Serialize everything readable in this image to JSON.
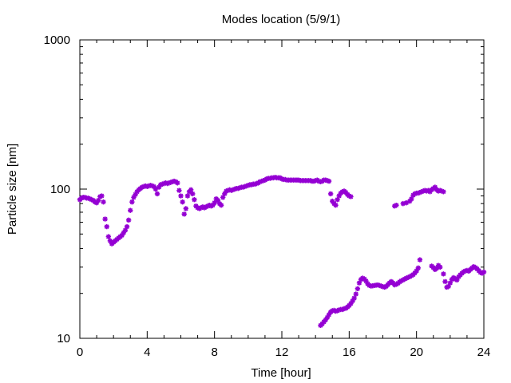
{
  "chart_data": {
    "type": "scatter",
    "title": "Modes location (5/9/1)",
    "xlabel": "Time [hour]",
    "ylabel": "Particle size [nm]",
    "xlim": [
      0,
      24
    ],
    "ylim": [
      10,
      1000
    ],
    "yscale": "log",
    "grid": false,
    "x_ticks": [
      0,
      4,
      8,
      12,
      16,
      20,
      24
    ],
    "x_tick_labels": [
      "0",
      "4",
      "8",
      "12",
      "16",
      "20",
      "24"
    ],
    "y_ticks": [
      10,
      100,
      1000
    ],
    "y_tick_labels": [
      "10",
      "100",
      "1000"
    ],
    "marker": "star",
    "color": "#9400d3",
    "series": [
      {
        "points": [
          [
            0.0,
            85
          ],
          [
            0.1,
            87
          ],
          [
            0.2,
            88
          ],
          [
            0.3,
            88
          ],
          [
            0.4,
            87
          ],
          [
            0.5,
            87
          ],
          [
            0.6,
            86
          ],
          [
            0.7,
            85
          ],
          [
            0.8,
            84
          ],
          [
            0.9,
            82
          ],
          [
            1.0,
            81
          ],
          [
            1.1,
            84
          ],
          [
            1.2,
            89
          ],
          [
            1.3,
            90
          ],
          [
            1.4,
            82
          ],
          [
            1.5,
            63
          ],
          [
            1.6,
            56
          ],
          [
            1.7,
            48
          ],
          [
            1.8,
            45
          ],
          [
            1.9,
            43
          ],
          [
            2.0,
            44
          ],
          [
            2.1,
            45
          ],
          [
            2.2,
            46
          ],
          [
            2.3,
            47
          ],
          [
            2.4,
            48
          ],
          [
            2.5,
            49
          ],
          [
            2.6,
            51
          ],
          [
            2.7,
            53
          ],
          [
            2.8,
            56
          ],
          [
            2.9,
            62
          ],
          [
            3.0,
            72
          ],
          [
            3.1,
            82
          ],
          [
            3.2,
            88
          ],
          [
            3.3,
            92
          ],
          [
            3.4,
            96
          ],
          [
            3.5,
            99
          ],
          [
            3.6,
            101
          ],
          [
            3.7,
            103
          ],
          [
            3.8,
            104
          ],
          [
            3.9,
            105
          ],
          [
            4.0,
            104
          ],
          [
            4.1,
            105
          ],
          [
            4.2,
            106
          ],
          [
            4.3,
            105
          ],
          [
            4.4,
            104
          ],
          [
            4.5,
            100
          ],
          [
            4.6,
            93
          ],
          [
            4.7,
            103
          ],
          [
            4.8,
            107
          ],
          [
            4.9,
            108
          ],
          [
            5.0,
            109
          ],
          [
            5.1,
            110
          ],
          [
            5.2,
            109
          ],
          [
            5.3,
            110
          ],
          [
            5.4,
            111
          ],
          [
            5.5,
            112
          ],
          [
            5.6,
            113
          ],
          [
            5.7,
            112
          ],
          [
            5.8,
            110
          ],
          [
            5.9,
            98
          ],
          [
            6.0,
            90
          ],
          [
            6.1,
            82
          ],
          [
            6.2,
            68
          ],
          [
            6.3,
            74
          ],
          [
            6.4,
            90
          ],
          [
            6.5,
            96
          ],
          [
            6.6,
            99
          ],
          [
            6.7,
            93
          ],
          [
            6.8,
            85
          ],
          [
            6.9,
            77
          ],
          [
            7.0,
            75
          ],
          [
            7.1,
            74
          ],
          [
            7.2,
            75
          ],
          [
            7.3,
            76
          ],
          [
            7.4,
            75
          ],
          [
            7.5,
            76
          ],
          [
            7.6,
            77
          ],
          [
            7.7,
            78
          ],
          [
            7.8,
            77
          ],
          [
            7.9,
            78
          ],
          [
            8.0,
            81
          ],
          [
            8.1,
            86
          ],
          [
            8.2,
            84
          ],
          [
            8.3,
            80
          ],
          [
            8.4,
            78
          ],
          [
            8.5,
            88
          ],
          [
            8.6,
            93
          ],
          [
            8.7,
            97
          ],
          [
            8.8,
            98
          ],
          [
            8.9,
            99
          ],
          [
            9.0,
            98
          ],
          [
            9.1,
            99
          ],
          [
            9.2,
            100
          ],
          [
            9.3,
            101
          ],
          [
            9.4,
            101
          ],
          [
            9.5,
            102
          ],
          [
            9.6,
            103
          ],
          [
            9.7,
            103
          ],
          [
            9.8,
            104
          ],
          [
            9.9,
            105
          ],
          [
            10.0,
            106
          ],
          [
            10.1,
            107
          ],
          [
            10.2,
            107
          ],
          [
            10.3,
            108
          ],
          [
            10.4,
            108
          ],
          [
            10.5,
            109
          ],
          [
            10.6,
            110
          ],
          [
            10.7,
            112
          ],
          [
            10.8,
            113
          ],
          [
            10.9,
            114
          ],
          [
            11.0,
            115
          ],
          [
            11.1,
            117
          ],
          [
            11.2,
            118
          ],
          [
            11.3,
            118
          ],
          [
            11.4,
            119
          ],
          [
            11.5,
            119
          ],
          [
            11.6,
            120
          ],
          [
            11.7,
            119
          ],
          [
            11.8,
            119
          ],
          [
            11.9,
            119
          ],
          [
            12.0,
            117
          ],
          [
            12.1,
            116
          ],
          [
            12.2,
            116
          ],
          [
            12.3,
            115
          ],
          [
            12.4,
            115
          ],
          [
            12.5,
            115
          ],
          [
            12.6,
            115
          ],
          [
            12.7,
            115
          ],
          [
            12.8,
            115
          ],
          [
            12.9,
            115
          ],
          [
            13.0,
            115
          ],
          [
            13.1,
            114
          ],
          [
            13.2,
            114
          ],
          [
            13.3,
            114
          ],
          [
            13.4,
            114
          ],
          [
            13.5,
            114
          ],
          [
            13.6,
            114
          ],
          [
            13.7,
            114
          ],
          [
            13.8,
            113
          ],
          [
            13.9,
            113
          ],
          [
            14.0,
            114
          ],
          [
            14.1,
            115
          ],
          [
            14.2,
            113
          ],
          [
            14.3,
            112
          ],
          [
            14.4,
            113
          ],
          [
            14.5,
            115
          ],
          [
            14.6,
            115
          ],
          [
            14.7,
            114
          ],
          [
            14.8,
            113
          ],
          [
            14.9,
            93
          ],
          [
            15.0,
            83
          ],
          [
            15.1,
            80
          ],
          [
            15.2,
            78
          ],
          [
            15.3,
            85
          ],
          [
            15.4,
            90
          ],
          [
            15.5,
            94
          ],
          [
            15.6,
            96
          ],
          [
            15.7,
            97
          ],
          [
            15.8,
            95
          ],
          [
            15.9,
            92
          ],
          [
            16.0,
            90
          ],
          [
            16.1,
            89
          ],
          [
            18.7,
            77
          ],
          [
            18.8,
            78
          ],
          [
            19.2,
            80
          ],
          [
            19.4,
            81
          ],
          [
            19.6,
            83
          ],
          [
            19.7,
            86
          ],
          [
            19.8,
            91
          ],
          [
            19.9,
            93
          ],
          [
            20.0,
            94
          ],
          [
            20.1,
            94
          ],
          [
            20.2,
            95
          ],
          [
            20.3,
            96
          ],
          [
            20.4,
            97
          ],
          [
            20.5,
            98
          ],
          [
            20.6,
            97
          ],
          [
            20.7,
            98
          ],
          [
            20.8,
            96
          ],
          [
            20.9,
            99
          ],
          [
            21.0,
            101
          ],
          [
            21.1,
            103
          ],
          [
            21.2,
            99
          ],
          [
            21.3,
            97
          ],
          [
            21.4,
            98
          ],
          [
            21.5,
            97
          ],
          [
            21.6,
            96
          ],
          [
            14.3,
            12.2
          ],
          [
            14.4,
            12.5
          ],
          [
            14.5,
            12.9
          ],
          [
            14.6,
            13.3
          ],
          [
            14.7,
            13.8
          ],
          [
            14.8,
            14.4
          ],
          [
            14.9,
            15.0
          ],
          [
            15.0,
            15.3
          ],
          [
            15.1,
            15.4
          ],
          [
            15.2,
            15.2
          ],
          [
            15.3,
            15.3
          ],
          [
            15.4,
            15.5
          ],
          [
            15.5,
            15.6
          ],
          [
            15.6,
            15.6
          ],
          [
            15.7,
            15.8
          ],
          [
            15.8,
            15.9
          ],
          [
            15.9,
            16.2
          ],
          [
            16.0,
            16.6
          ],
          [
            16.1,
            17.1
          ],
          [
            16.2,
            17.8
          ],
          [
            16.3,
            18.6
          ],
          [
            16.4,
            19.8
          ],
          [
            16.5,
            21.5
          ],
          [
            16.6,
            23.5
          ],
          [
            16.7,
            24.8
          ],
          [
            16.8,
            25.3
          ],
          [
            16.9,
            25.0
          ],
          [
            17.0,
            24.2
          ],
          [
            17.1,
            23.2
          ],
          [
            17.2,
            22.6
          ],
          [
            17.3,
            22.4
          ],
          [
            17.4,
            22.5
          ],
          [
            17.5,
            22.6
          ],
          [
            17.6,
            22.7
          ],
          [
            17.7,
            22.8
          ],
          [
            17.8,
            22.6
          ],
          [
            17.9,
            22.4
          ],
          [
            18.0,
            22.2
          ],
          [
            18.1,
            22.0
          ],
          [
            18.2,
            22.3
          ],
          [
            18.3,
            22.9
          ],
          [
            18.4,
            23.5
          ],
          [
            18.5,
            24.0
          ],
          [
            18.6,
            23.5
          ],
          [
            18.7,
            22.8
          ],
          [
            18.8,
            23.0
          ],
          [
            18.9,
            23.4
          ],
          [
            19.0,
            23.9
          ],
          [
            19.1,
            24.3
          ],
          [
            19.2,
            24.6
          ],
          [
            19.3,
            25.0
          ],
          [
            19.4,
            25.3
          ],
          [
            19.5,
            25.6
          ],
          [
            19.6,
            25.9
          ],
          [
            19.7,
            26.3
          ],
          [
            19.8,
            26.7
          ],
          [
            19.9,
            27.4
          ],
          [
            20.0,
            28.3
          ],
          [
            20.1,
            29.6
          ],
          [
            20.2,
            33.6
          ],
          [
            20.9,
            30.5
          ],
          [
            21.0,
            29.8
          ],
          [
            21.1,
            28.9
          ],
          [
            21.2,
            29.5
          ],
          [
            21.3,
            30.8
          ],
          [
            21.4,
            30.0
          ],
          [
            21.6,
            27.0
          ],
          [
            21.7,
            24.0
          ],
          [
            21.8,
            22.0
          ],
          [
            21.9,
            22.3
          ],
          [
            22.0,
            23.5
          ],
          [
            22.1,
            24.8
          ],
          [
            22.2,
            25.5
          ],
          [
            22.3,
            25.0
          ],
          [
            22.4,
            24.6
          ],
          [
            22.5,
            25.8
          ],
          [
            22.6,
            26.6
          ],
          [
            22.7,
            27.3
          ],
          [
            22.8,
            27.9
          ],
          [
            22.9,
            28.3
          ],
          [
            23.0,
            28.5
          ],
          [
            23.1,
            28.2
          ],
          [
            23.2,
            28.9
          ],
          [
            23.3,
            29.6
          ],
          [
            23.4,
            30.2
          ],
          [
            23.5,
            29.8
          ],
          [
            23.6,
            29.2
          ],
          [
            23.7,
            28.4
          ],
          [
            23.8,
            27.6
          ],
          [
            23.9,
            27.3
          ],
          [
            24.0,
            27.8
          ]
        ]
      }
    ]
  }
}
